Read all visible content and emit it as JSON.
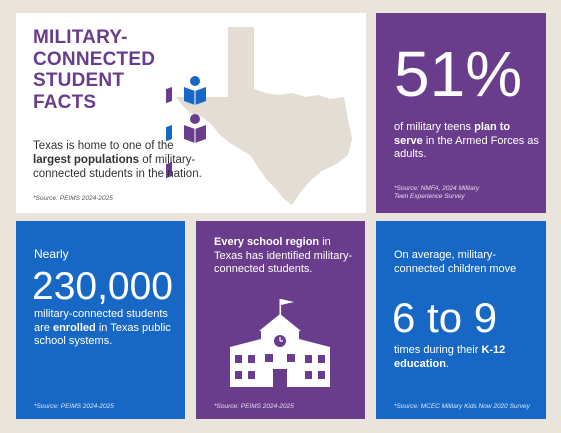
{
  "card1": {
    "title_lines": [
      "MILITARY-",
      "CONNECTED",
      "STUDENT",
      "FACTS"
    ],
    "desc_pre": "Texas is home to one of the ",
    "desc_bold": "largest populations",
    "desc_post": " of military-connected students in the nation.",
    "source": "*Source: PEIMS 2024-2025",
    "colors": {
      "purple": "#6a3d8c",
      "blue": "#1768c4",
      "map": "#e3ddd3"
    }
  },
  "card2": {
    "big": "51%",
    "desc_pre": "of military teens ",
    "desc_bold": "plan to serve",
    "desc_post": " in the Armed Forces as adults.",
    "source_lines": [
      "*Source: NMFA, 2024 Military",
      "Teen Experience Survey"
    ]
  },
  "card3": {
    "pre": "Nearly",
    "big": "230,000",
    "desc_pre": "military-connected students are ",
    "desc_bold": "enrolled",
    "desc_post": " in Texas public school systems.",
    "source": "*Source: PEIMS 2024-2025"
  },
  "card4": {
    "desc_bold": "Every school region",
    "desc_post": " in Texas has identified military-connected students.",
    "source": "*Source: PEIMS 2024-2025",
    "icon": "school-building-icon"
  },
  "card5": {
    "desc1": "On average, military-connected children move",
    "big": "6 to 9",
    "desc2_pre": "times during their ",
    "desc2_bold": "K-12 education",
    "desc2_post": ".",
    "source": "*Source: MCEC Military Kids Now 2020 Survey"
  }
}
